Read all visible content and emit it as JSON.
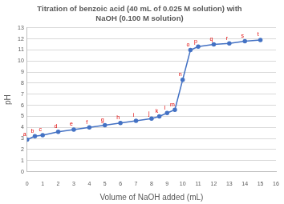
{
  "chart_data": {
    "type": "line",
    "title": [
      "Titration of benzoic acid (40 mL of 0.025 M solution) with",
      "NaOH (0.100 M solution)"
    ],
    "x_label": "Volume of NaOH added (mL)",
    "y_label": "pH",
    "x": [
      0,
      0.5,
      1,
      2,
      3,
      4,
      5,
      6,
      7,
      8,
      8.5,
      9,
      9.5,
      10,
      10.5,
      11,
      12,
      13,
      14,
      15
    ],
    "values": [
      2.9,
      3.2,
      3.3,
      3.6,
      3.8,
      4.0,
      4.2,
      4.4,
      4.6,
      4.8,
      5.0,
      5.3,
      5.6,
      8.3,
      11.0,
      11.3,
      11.5,
      11.6,
      11.8,
      11.9
    ],
    "point_labels": [
      "a",
      "b",
      "c",
      "d",
      "e",
      "f",
      "g",
      "h",
      "i",
      "j",
      "k",
      "l",
      "m",
      "n",
      "o",
      "p",
      "q",
      "r",
      "s",
      "t"
    ],
    "color": "#4472c4",
    "marker": "circle",
    "xlim": [
      0,
      16
    ],
    "xticks": [
      0,
      1,
      2,
      3,
      4,
      5,
      6,
      7,
      8,
      9,
      10,
      11,
      12,
      13,
      14,
      15,
      16
    ],
    "ylim": [
      0,
      13
    ],
    "yticks": [
      0,
      1,
      2,
      3,
      4,
      5,
      6,
      7,
      8,
      9,
      10,
      11,
      12,
      13
    ],
    "grid": true
  }
}
